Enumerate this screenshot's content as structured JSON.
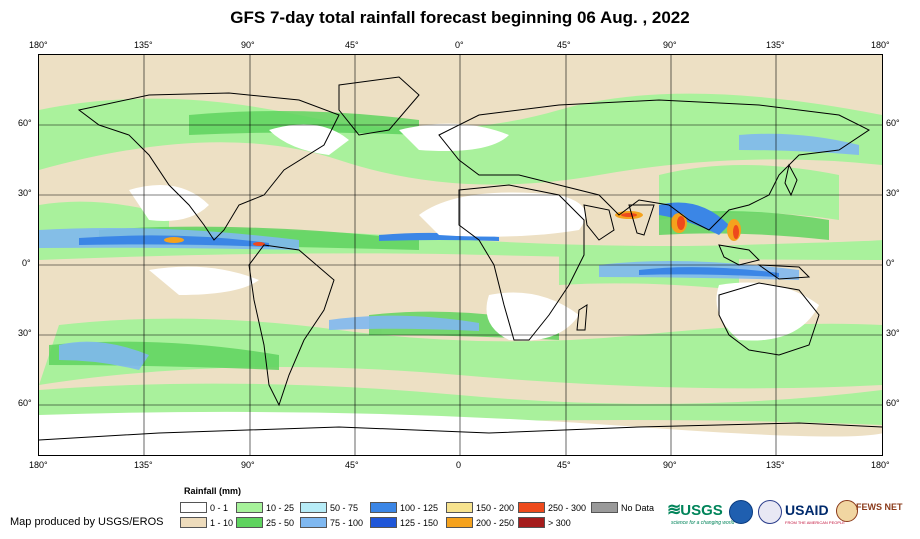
{
  "title": "GFS 7-day total rainfall forecast beginning 06 Aug. , 2022",
  "map": {
    "top_lon_labels": [
      "180°",
      "135°",
      "90°",
      "45°",
      "0°",
      "45°",
      "90°",
      "135°",
      "180°"
    ],
    "bottom_lon_labels": [
      "180°",
      "135°",
      "90°",
      "45°",
      "0",
      "45°",
      "90°",
      "135°",
      "180°"
    ],
    "lat_labels": [
      "60°",
      "30°",
      "0°",
      "30°",
      "60°"
    ]
  },
  "legend": {
    "title": "Rainfall (mm)",
    "items": [
      {
        "label": "0 - 1",
        "color": "#ffffff"
      },
      {
        "label": "1 - 10",
        "color": "#eedcbc"
      },
      {
        "label": "10 - 25",
        "color": "#a6f29a"
      },
      {
        "label": "25 - 50",
        "color": "#5fd35f"
      },
      {
        "label": "50 - 75",
        "color": "#b7ecf7"
      },
      {
        "label": "75 - 100",
        "color": "#7fb8f0"
      },
      {
        "label": "100 - 125",
        "color": "#3b86e6"
      },
      {
        "label": "125 - 150",
        "color": "#1f56d8"
      },
      {
        "label": "150 - 200",
        "color": "#f7e38e"
      },
      {
        "label": "200 - 250",
        "color": "#f5a21d"
      },
      {
        "label": "250 - 300",
        "color": "#ee4a1c"
      },
      {
        "label": "> 300",
        "color": "#a51c1c"
      },
      {
        "label": "No Data",
        "color": "#9a9a9a"
      }
    ]
  },
  "credit": "Map produced by USGS/EROS",
  "logos": {
    "usgs": "USGS",
    "usgs_tagline": "science for a changing world",
    "usaid": "USAID",
    "usaid_tagline": "FROM THE AMERICAN PEOPLE",
    "fewsnet": "FEWS NET"
  }
}
